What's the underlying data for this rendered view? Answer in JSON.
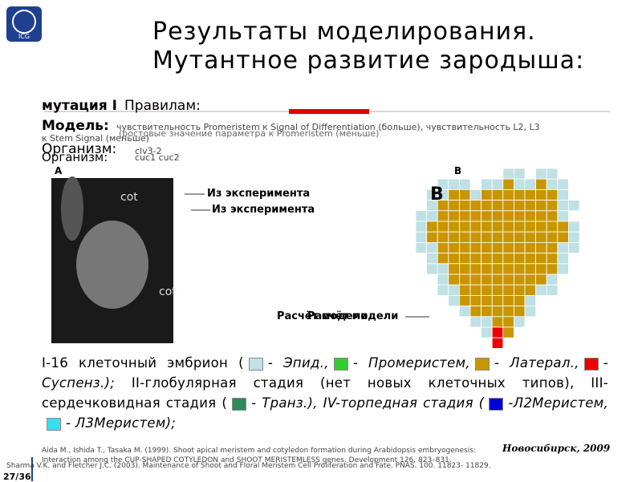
{
  "header": {
    "logo": "ICG",
    "title_line1": "Результаты моделирования.",
    "title_line2": "Мутантное развитие зародыша:"
  },
  "info": {
    "mutation_label": "мутация I",
    "overlap_label": "Правилам:",
    "model_label": "Модель:",
    "model_text": "чувствительность Promeristem к Signal of Differentiation (больше), чувствительность L2, L3",
    "model_overlap": "(ростовые значение параметра к Promeristem (меньше)",
    "model_text2": "к Stem Signal (меньше)",
    "organism1_label": "Организм:",
    "organism1": "clv3-2",
    "organism2_label": "Организм:",
    "organism2": "cuc1 cuc2"
  },
  "figure": {
    "label_a": "A",
    "label_b_small": "B",
    "label_b_big": "B",
    "cot1": "cot",
    "cot2": "cot",
    "experiment1": "Из эксперимента",
    "experiment2": "Из эксперимента",
    "model1": "Расчёт модели",
    "model2": "Расчёт модели"
  },
  "paragraph": [
    "I-16 клеточный эмбрион (",
    "- Эпид.,",
    "- Промеристем,",
    "- Латерал.,",
    "- Суспенз.);",
    "II-глобулярная стадия (нет новых клеточных типов), III-сердечковидная стадия (",
    "- Транз.), IV-торпедная стадия (",
    "-Л2Меристем,",
    "- Л3Меристем);"
  ],
  "footer": {
    "ref1": "Aida M., Ishida T., Tasaka M. (1999). Shoot apical meristem and cotyledon formation during Arabidopsis embryogenesis: Interaction among the CUP-SHAPED COTYLEDON and SHOOT MERISTEMLESS genes. Development 126, 823–831.",
    "ref2": "Sharma V.K. and Fletcher J.C. (2003). Maintenance of Shoot and Floral Meristem Cell Proliferation and Fate. PNAS. 100. 11823- 11829.",
    "city": "Новосибирск, 2009",
    "page": "27/36"
  }
}
